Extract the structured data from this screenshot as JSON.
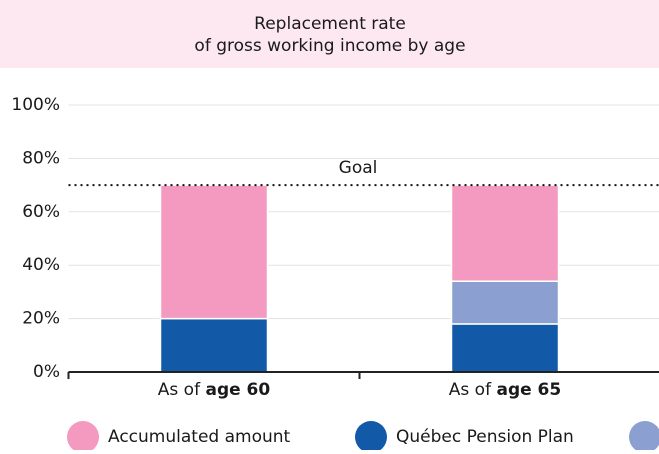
{
  "chart_data": {
    "type": "stacked-bar",
    "title": "Replacement rate",
    "subtitle": "of gross working income by age",
    "categories": [
      "As of age 60",
      "As of age 65"
    ],
    "series": [
      {
        "name": "Québec Pension Plan",
        "color": "#1259a8",
        "values": [
          20,
          18
        ]
      },
      {
        "color": "#8b9fd1",
        "values": [
          null,
          16
        ]
      },
      {
        "name": "Accumulated amount",
        "color": "#f49ac1",
        "values": [
          50,
          36
        ]
      }
    ],
    "legend_order": [
      2,
      0,
      1
    ],
    "ylim": [
      0,
      100
    ],
    "yticks": [
      {
        "value": 0,
        "label": "0%"
      },
      {
        "value": 20,
        "label": "20%"
      },
      {
        "value": 40,
        "label": "40%"
      },
      {
        "value": 60,
        "label": "60%"
      },
      {
        "value": 80,
        "label": "80%"
      },
      {
        "value": 100,
        "label": "100%"
      }
    ],
    "grid": true,
    "goal": {
      "label": "Goal",
      "value": 70
    }
  }
}
